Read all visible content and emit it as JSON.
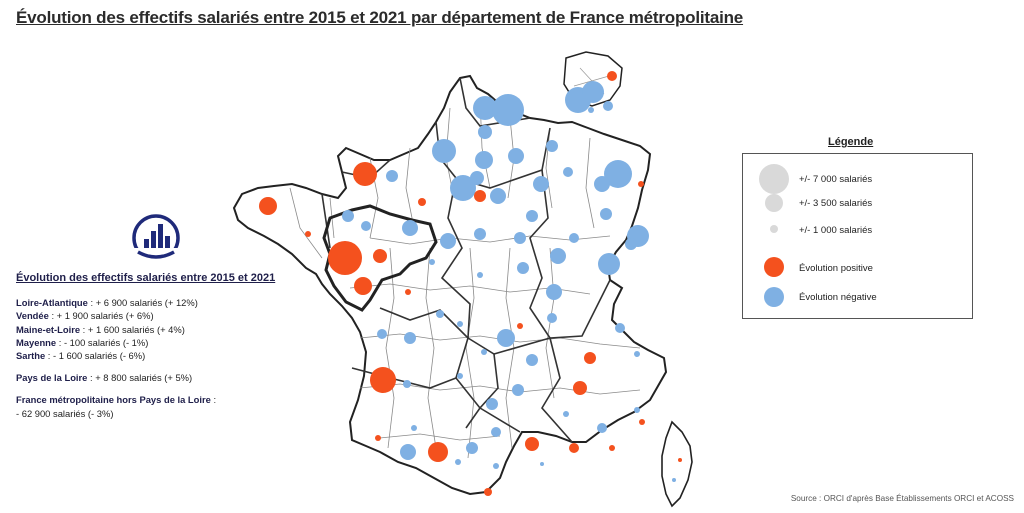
{
  "title": "Évolution des effectifs salariés entre 2015 et 2021 par département de France métropolitaine",
  "colors": {
    "positive": "#f4511e",
    "negative": "#7fb0e3",
    "size_symbol": "#d9d9d9",
    "region_border": "#333333",
    "dept_border": "#888888",
    "pdl_border": "#222222"
  },
  "stats": {
    "title": "Évolution des effectifs salariés entre 2015 et 2021",
    "lines": [
      {
        "name": "Loire-Atlantique",
        "text": " : + 6 900 salariés (+ 12%)"
      },
      {
        "name": "Vendée",
        "text": " : + 1 900 salariés (+ 6%)"
      },
      {
        "name": "Maine-et-Loire",
        "text": " : + 1 600 salariés (+ 4%)"
      },
      {
        "name": "Mayenne",
        "text": " : - 100 salariés (- 1%)"
      },
      {
        "name": "Sarthe",
        "text": " : - 1 600 salariés (- 6%)"
      }
    ],
    "region": {
      "name": "Pays de la Loire",
      "text": " : + 8 800 salariés (+ 5%)"
    },
    "france": {
      "name": "France métropolitaine hors Pays de la Loire",
      "suffix": " :",
      "text": "- 62 900 salariés (- 3%)"
    }
  },
  "legend": {
    "title": "Légende",
    "sizes": [
      {
        "label": "+/- 7 000 salariés",
        "value": 7000
      },
      {
        "label": "+/- 3 500 salariés",
        "value": 3500
      },
      {
        "label": "+/- 1 000 salariés",
        "value": 1000
      }
    ],
    "colors": [
      {
        "label": "Évolution positive",
        "kind": "positive"
      },
      {
        "label": "Évolution négative",
        "kind": "negative"
      }
    ]
  },
  "source": "Source : ORCI d'après Base Établissements ORCI et ACOSS"
}
